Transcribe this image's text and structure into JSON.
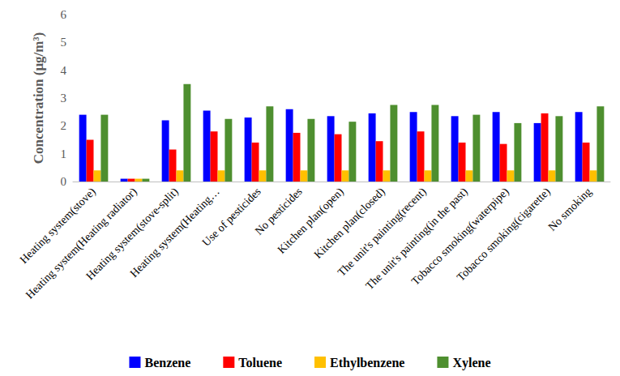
{
  "chart_data": {
    "type": "bar",
    "y_label": "Concentration (μg/m³)",
    "categories": [
      "Heating system(stove)",
      "Heating system(Heating radiator)",
      "Heating system(stove-split)",
      "Heating system(Heating…",
      "Use of pesticides",
      "No pesticides",
      "Kitchen plan(open)",
      "Kitchen plan(closed)",
      "The unit's painting(recent)",
      "The unit's painting(in the past)",
      "Tobacco smoking(waterpipe)",
      "Tobacco smoking(cigarette)",
      "No smoking"
    ],
    "series": [
      {
        "name": "Benzene",
        "color": "#0000ff",
        "values": [
          2.4,
          0.1,
          2.2,
          2.55,
          2.3,
          2.6,
          2.35,
          2.45,
          2.5,
          2.35,
          2.5,
          2.1,
          2.5
        ]
      },
      {
        "name": "Toluene",
        "color": "#ff0000",
        "values": [
          1.5,
          0.1,
          1.15,
          1.8,
          1.4,
          1.75,
          1.7,
          1.45,
          1.8,
          1.4,
          1.35,
          2.45,
          1.4
        ]
      },
      {
        "name": "Ethylbenzene",
        "color": "#ffc000",
        "values": [
          0.4,
          0.1,
          0.4,
          0.4,
          0.4,
          0.4,
          0.4,
          0.4,
          0.4,
          0.4,
          0.4,
          0.4,
          0.4
        ]
      },
      {
        "name": "Xylene",
        "color": "#4e8f2f",
        "values": [
          2.4,
          0.1,
          3.5,
          2.25,
          2.7,
          2.25,
          2.15,
          2.75,
          2.75,
          2.4,
          2.1,
          2.35,
          2.7
        ]
      }
    ],
    "ylim": [
      0,
      6
    ],
    "yticks": [
      0,
      1,
      2,
      3,
      4,
      5,
      6
    ],
    "grid": false,
    "legend": "bottom"
  }
}
